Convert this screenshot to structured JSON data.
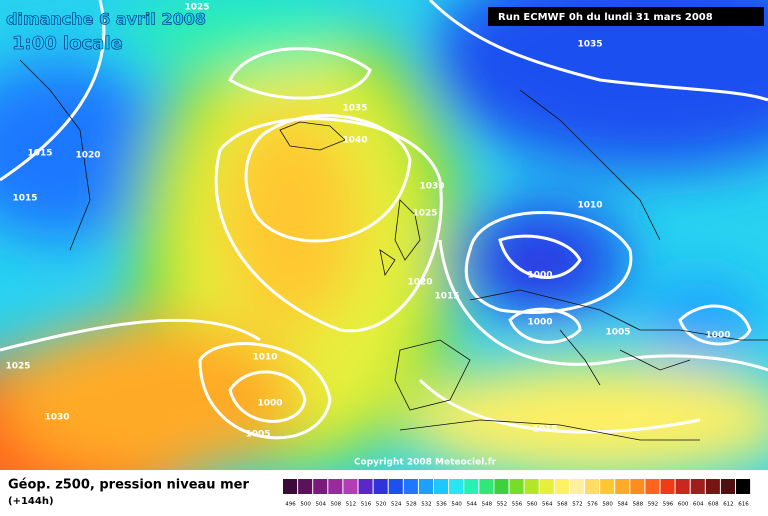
{
  "header": {
    "title": "dimanche 6 avril 2008",
    "subtitle": "1:00 locale",
    "run": "Run ECMWF 0h du lundi 31 mars 2008"
  },
  "map": {
    "copyright": "Copyright 2008 Meteociel.fr",
    "isobar_labels": [
      1025,
      1035,
      1035,
      1040,
      1015,
      1020,
      1015,
      1030,
      1025,
      1010,
      1000,
      1020,
      1015,
      1000,
      1005,
      1000,
      1010,
      1025,
      1030,
      1000,
      1005,
      1015
    ]
  },
  "legend": {
    "title": "Géop. z500, pression niveau mer",
    "lead": "(+144h)",
    "ticks": [
      496,
      500,
      504,
      508,
      512,
      516,
      520,
      524,
      528,
      532,
      536,
      540,
      544,
      548,
      552,
      556,
      560,
      564,
      568,
      572,
      576,
      580,
      584,
      588,
      592,
      596,
      600,
      604,
      608,
      612,
      616
    ],
    "colors": [
      "#3a0a3a",
      "#5a125a",
      "#7a1a7a",
      "#9a2a9a",
      "#b43cb4",
      "#5a28c8",
      "#3232dc",
      "#1e50f0",
      "#1e78ff",
      "#1ea0ff",
      "#1ec8ff",
      "#28e6f0",
      "#28f0b4",
      "#32e678",
      "#3cd23c",
      "#78dc28",
      "#b4e628",
      "#e6f03c",
      "#fff064",
      "#fff0a0",
      "#ffdc64",
      "#ffc832",
      "#ffaa28",
      "#ff8c1e",
      "#ff641e",
      "#f03c14",
      "#c8281e",
      "#a01e1e",
      "#781414",
      "#501010",
      "#000000"
    ]
  }
}
